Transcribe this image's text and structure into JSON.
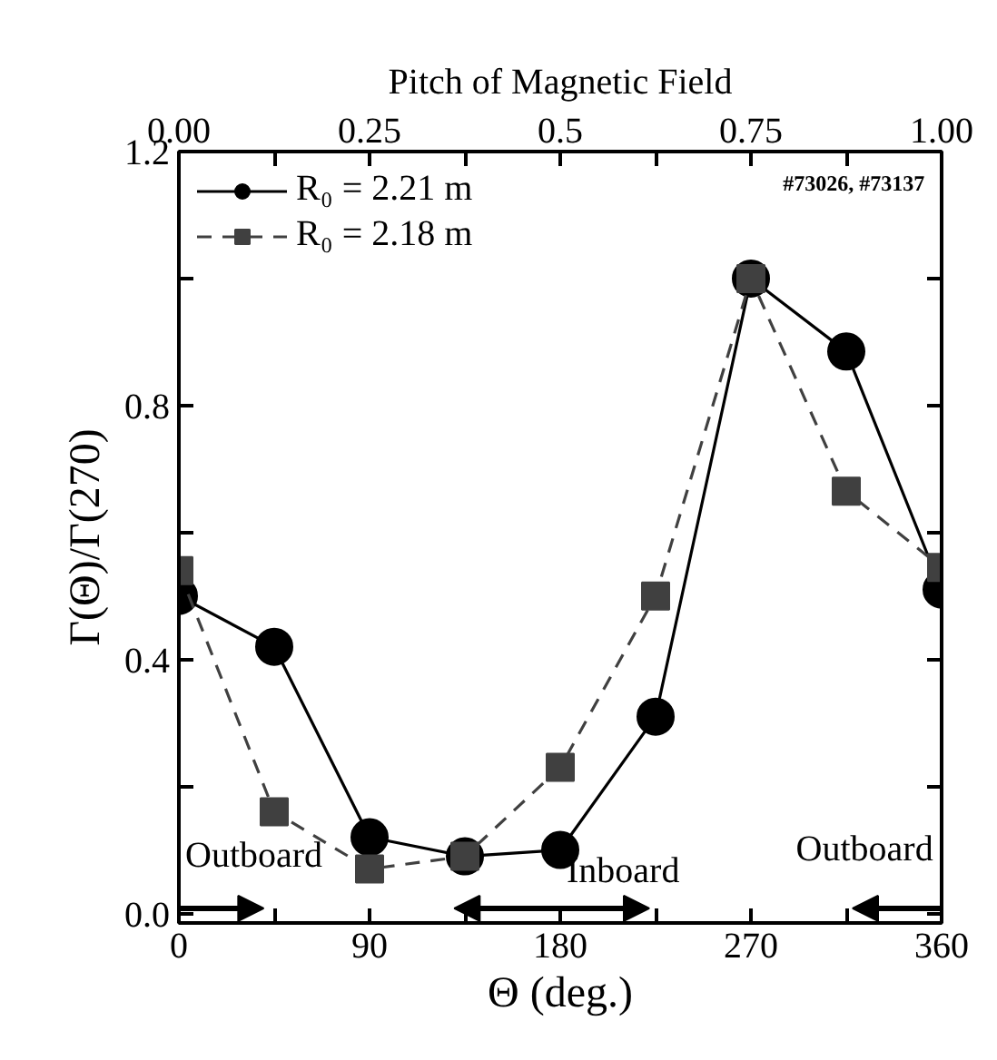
{
  "chart_data": {
    "type": "line",
    "x": [
      0,
      45,
      90,
      135,
      180,
      225,
      270,
      315,
      360
    ],
    "series": [
      {
        "name": "R₀ = 2.21 m",
        "color": "#000000",
        "marker": "circle",
        "line_style": "solid",
        "values": [
          0.5,
          0.42,
          0.12,
          0.09,
          0.1,
          0.31,
          1.0,
          0.885,
          0.51
        ]
      },
      {
        "name": "R₀ = 2.18 m",
        "color": "#404040",
        "marker": "square",
        "line_style": "dashed",
        "values": [
          0.54,
          0.16,
          0.07,
          0.09,
          0.23,
          0.5,
          1.0,
          0.665,
          0.545
        ]
      }
    ],
    "xlabel": "Θ (deg.)",
    "ylabel": "Γ(Θ)/Γ(270)",
    "x2label": "Pitch of Magnetic Field",
    "xlim": [
      0,
      360
    ],
    "ylim": [
      -0.015,
      1.2
    ],
    "xticks": [
      0,
      {
        "value": 45,
        "label": null
      },
      90,
      {
        "value": 135,
        "label": null
      },
      180,
      {
        "value": 225,
        "label": null
      },
      270,
      {
        "value": 315,
        "label": null
      },
      360
    ],
    "yticks": [
      {
        "value": 0,
        "label": "0.0"
      },
      {
        "value": 0.2,
        "label": null
      },
      0.4,
      {
        "value": 0.6,
        "label": null
      },
      0.8,
      {
        "value": 1.0,
        "label": null
      },
      1.2
    ],
    "x2lim": [
      0,
      1
    ],
    "x2ticks": [
      {
        "value": 0,
        "label": "0.00"
      },
      {
        "value": 0.125,
        "label": null
      },
      {
        "value": 0.25,
        "label": "0.25"
      },
      {
        "value": 0.375,
        "label": null
      },
      0.5,
      {
        "value": 0.625,
        "label": null
      },
      0.75,
      {
        "value": 0.875,
        "label": null
      },
      {
        "value": 1,
        "label": "1.00"
      }
    ],
    "annotations": [
      "#73026, #73137",
      "Outboard",
      "Inboard",
      "Outboard"
    ],
    "legend": "top left",
    "grid": false
  }
}
